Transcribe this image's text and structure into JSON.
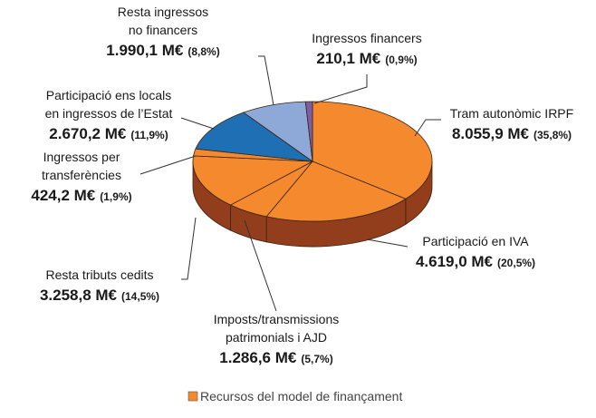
{
  "chart_data": {
    "type": "pie",
    "series_name": "Recursos del model de finançament",
    "legend_color": "#f4892e",
    "categories": [
      [
        "Tram autonòmic IRPF"
      ],
      [
        "Participació en IVA"
      ],
      [
        "Imposts/transmissions",
        "patrimonials i AJD"
      ],
      [
        "Resta tributs cedits"
      ],
      [
        "Ingressos per",
        "transferències"
      ],
      [
        "Participació ens locals",
        "en ingressos de l’Estat"
      ],
      [
        "Resta ingressos",
        "no financers"
      ],
      [
        "Ingressos financers"
      ]
    ],
    "values": [
      8055.9,
      4619.0,
      1286.6,
      3258.8,
      424.2,
      2670.2,
      1990.1,
      210.1
    ],
    "value_labels": [
      "8.055,9 M€",
      "4.619,0 M€",
      "1.286,6 M€",
      "3.258,8 M€",
      "424,2 M€",
      "2.670,2 M€",
      "1.990,1 M€",
      "210,1 M€"
    ],
    "percents": [
      35.8,
      20.5,
      5.7,
      14.5,
      1.9,
      11.9,
      8.8,
      0.9
    ],
    "percent_labels": [
      "(35,8%)",
      "(20,5%)",
      "(5,7%)",
      "(14,5%)",
      "(1,9%)",
      "(11,9%)",
      "(8,8%)",
      "(0,9%)"
    ],
    "colors": [
      "#f4892e",
      "#f4892e",
      "#f4892e",
      "#f4892e",
      "#f4892e",
      "#1f6fb4",
      "#8ea9d8",
      "#7b5ea7"
    ]
  }
}
